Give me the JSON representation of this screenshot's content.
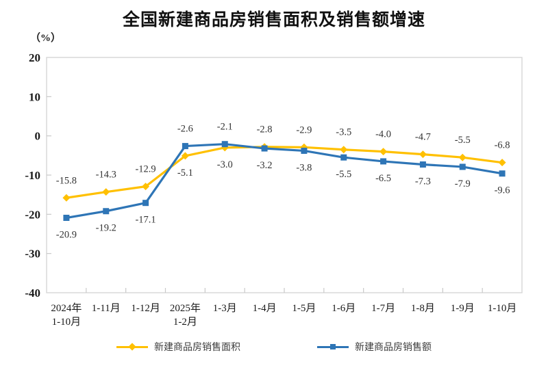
{
  "title": "全国新建商品房销售面积及销售额增速",
  "chart_data": {
    "type": "line",
    "y_unit": "（%）",
    "categories": [
      "2024年\n1-10月",
      "1-11月",
      "1-12月",
      "2025年\n1-2月",
      "1-3月",
      "1-4月",
      "1-5月",
      "1-6月",
      "1-7月",
      "1-8月",
      "1-9月",
      "1-10月"
    ],
    "series": [
      {
        "name": "新建商品房销售面积",
        "marker": "diamond",
        "color": "#FFC000",
        "values": [
          -15.8,
          -14.3,
          -12.9,
          -5.1,
          -3.0,
          -2.8,
          -2.9,
          -3.5,
          -4.0,
          -4.7,
          -5.5,
          -6.8
        ]
      },
      {
        "name": "新建商品房销售额",
        "marker": "square",
        "color": "#2E75B6",
        "values": [
          -20.9,
          -19.2,
          -17.1,
          -2.6,
          -2.1,
          -3.2,
          -3.8,
          -5.5,
          -6.5,
          -7.3,
          -7.9,
          -9.6
        ]
      }
    ],
    "ylim": [
      -40,
      20
    ],
    "ytick_step": 10,
    "ytick_labels": [
      "20",
      "10",
      "0",
      "-10",
      "-20",
      "-30",
      "-40"
    ],
    "grid": false,
    "data_labels": true,
    "legend_position": "bottom",
    "frame_color": "#D9D9D9",
    "tick_color": "#C9C9C9",
    "data_label_color": "#333333",
    "axis_text_color": "#1A1A1A"
  }
}
